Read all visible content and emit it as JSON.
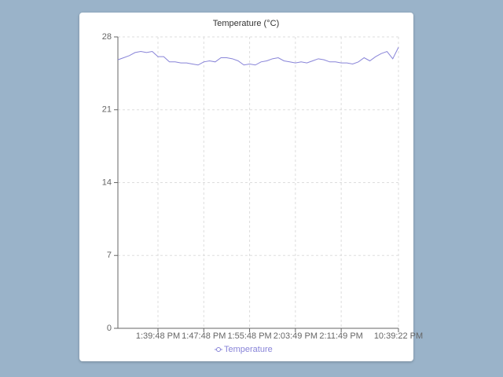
{
  "chart_data": {
    "type": "line",
    "title": "Temperature (°C)",
    "categories": [
      null,
      null,
      null,
      null,
      null,
      null,
      null,
      "1:39:48 PM",
      null,
      null,
      null,
      null,
      null,
      null,
      null,
      "1:47:48 PM",
      null,
      null,
      null,
      null,
      null,
      null,
      null,
      "1:55:48 PM",
      null,
      null,
      null,
      null,
      null,
      null,
      null,
      "2:03:49 PM",
      null,
      null,
      null,
      null,
      null,
      null,
      null,
      "2:11:49 PM",
      null,
      null,
      null,
      null,
      null,
      null,
      null,
      null,
      null,
      "10:39:22 PM"
    ],
    "series": [
      {
        "name": "Temperature",
        "color": "#8884d8",
        "values": [
          25.8,
          26.0,
          26.2,
          26.5,
          26.6,
          26.5,
          26.6,
          26.1,
          26.1,
          25.6,
          25.6,
          25.5,
          25.5,
          25.4,
          25.3,
          25.6,
          25.7,
          25.6,
          26.0,
          26.0,
          25.9,
          25.7,
          25.3,
          25.4,
          25.3,
          25.6,
          25.7,
          25.9,
          26.0,
          25.7,
          25.6,
          25.5,
          25.6,
          25.5,
          25.7,
          25.9,
          25.8,
          25.6,
          25.6,
          25.5,
          25.5,
          25.4,
          25.6,
          26.0,
          25.7,
          26.1,
          26.4,
          26.6,
          25.9,
          27.0
        ]
      }
    ],
    "ylim": [
      0,
      28
    ],
    "yticks": [
      0,
      7,
      14,
      21,
      28
    ],
    "grid": true
  }
}
